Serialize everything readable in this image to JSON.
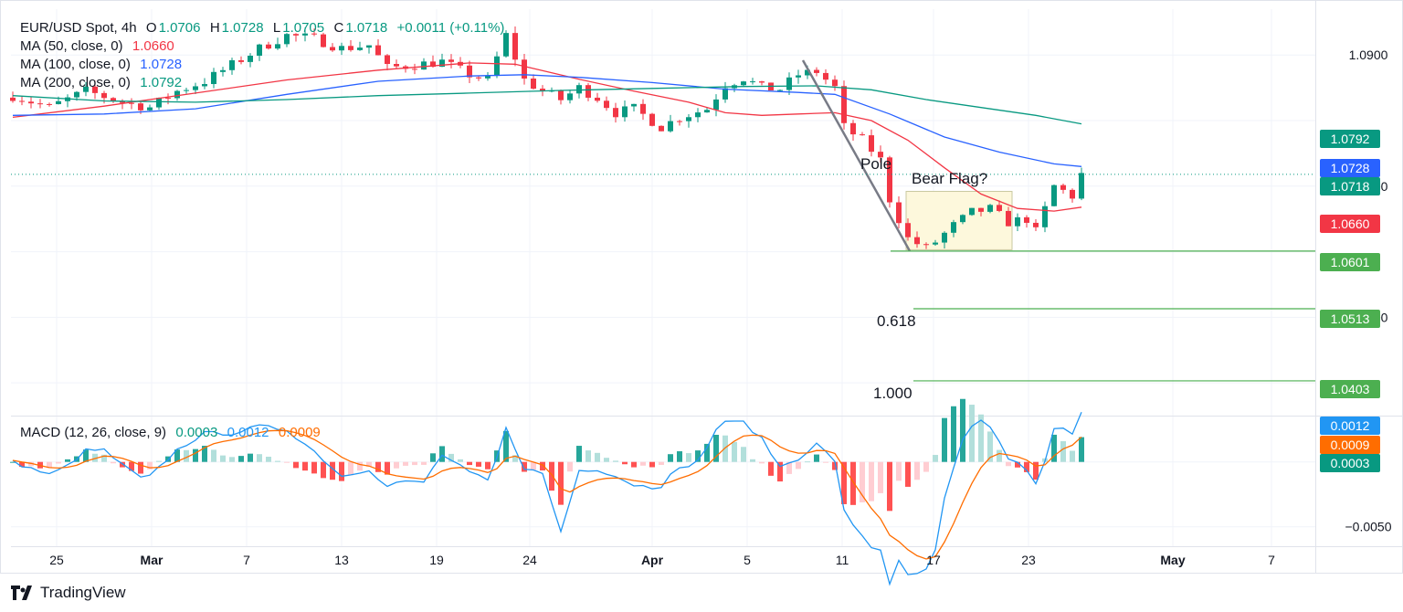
{
  "header": {
    "symbol": "EUR/USD Spot, 4h",
    "o_label": "O",
    "o_value": "1.0706",
    "h_label": "H",
    "h_value": "1.0728",
    "l_label": "L",
    "l_value": "1.0705",
    "c_label": "C",
    "c_value": "1.0718",
    "change": "+0.0011 (+0.11%)"
  },
  "indicators": [
    {
      "label": "MA (50, close, 0)",
      "value": "1.0660",
      "color": "#f23645"
    },
    {
      "label": "MA (100, close, 0)",
      "value": "1.0728",
      "color": "#2962ff"
    },
    {
      "label": "MA (200, close, 0)",
      "value": "1.0792",
      "color": "#089981"
    }
  ],
  "macd_legend": {
    "label": "MACD (12, 26, close, 9)",
    "hist": "0.0003",
    "macd": "0.0012",
    "signal": "0.0009",
    "hist_color": "#089981",
    "macd_color": "#2196f3",
    "signal_color": "#ff6d00"
  },
  "branding": "TradingView",
  "chart_data": {
    "type": "candlestick",
    "x_axis": {
      "tick_labels": [
        "25",
        "Mar",
        "7",
        "13",
        "19",
        "24",
        "Apr",
        "5",
        "11",
        "17",
        "23",
        "May",
        "7"
      ]
    },
    "price_axis": {
      "tick_labels": [
        "1.0900",
        "1.0700",
        "1.0500"
      ],
      "range": [
        1.035,
        1.097
      ]
    },
    "macd_axis": {
      "tick_labels": [
        "−0.0050"
      ],
      "range": [
        -0.0065,
        0.0035
      ]
    },
    "price_badges": [
      {
        "value": "1.0792",
        "color": "#089981"
      },
      {
        "value": "1.0728",
        "color": "#2962ff"
      },
      {
        "value": "1.0718",
        "color": "#089981"
      },
      {
        "value": "1.0660",
        "color": "#f23645"
      },
      {
        "value": "1.0601",
        "color": "#4caf50"
      },
      {
        "value": "1.0513",
        "color": "#4caf50"
      },
      {
        "value": "1.0403",
        "color": "#4caf50"
      }
    ],
    "macd_badges": [
      {
        "value": "0.0012",
        "color": "#2196f3"
      },
      {
        "value": "0.0009",
        "color": "#ff6d00"
      },
      {
        "value": "0.0003",
        "color": "#089981"
      }
    ],
    "moving_averages": [
      {
        "name": "MA 50",
        "color": "#f23645",
        "points": [
          [
            0,
            1.0805
          ],
          [
            10,
            1.0822
          ],
          [
            20,
            1.0842
          ],
          [
            30,
            1.0862
          ],
          [
            40,
            1.0877
          ],
          [
            50,
            1.0888
          ],
          [
            55,
            1.0886
          ],
          [
            62,
            1.0863
          ],
          [
            68,
            1.0845
          ],
          [
            74,
            1.0828
          ],
          [
            78,
            1.0812
          ],
          [
            82,
            1.0808
          ],
          [
            86,
            1.081
          ],
          [
            90,
            1.0812
          ],
          [
            94,
            1.08
          ],
          [
            98,
            1.077
          ],
          [
            102,
            1.0728
          ],
          [
            106,
            1.0688
          ],
          [
            110,
            1.0666
          ],
          [
            114,
            1.0662
          ],
          [
            117,
            1.0668
          ]
        ]
      },
      {
        "name": "MA 100",
        "color": "#2962ff",
        "points": [
          [
            0,
            1.0808
          ],
          [
            10,
            1.081
          ],
          [
            20,
            1.0818
          ],
          [
            30,
            1.084
          ],
          [
            40,
            1.086
          ],
          [
            50,
            1.0868
          ],
          [
            56,
            1.087
          ],
          [
            62,
            1.0866
          ],
          [
            70,
            1.0858
          ],
          [
            78,
            1.0848
          ],
          [
            86,
            1.0843
          ],
          [
            90,
            1.084
          ],
          [
            96,
            1.081
          ],
          [
            102,
            1.0775
          ],
          [
            108,
            1.0752
          ],
          [
            114,
            1.0734
          ],
          [
            117,
            1.073
          ]
        ]
      },
      {
        "name": "MA 200",
        "color": "#089981",
        "points": [
          [
            0,
            1.0838
          ],
          [
            10,
            1.083
          ],
          [
            20,
            1.0828
          ],
          [
            30,
            1.0832
          ],
          [
            40,
            1.0838
          ],
          [
            50,
            1.0842
          ],
          [
            60,
            1.0846
          ],
          [
            70,
            1.0849
          ],
          [
            80,
            1.0852
          ],
          [
            88,
            1.0853
          ],
          [
            94,
            1.0847
          ],
          [
            100,
            1.0832
          ],
          [
            106,
            1.082
          ],
          [
            112,
            1.0808
          ],
          [
            117,
            1.0795
          ]
        ]
      }
    ],
    "close_path": [
      [
        0,
        1.0838
      ],
      [
        4,
        1.082
      ],
      [
        8,
        1.0845
      ],
      [
        12,
        1.0828
      ],
      [
        15,
        1.082
      ],
      [
        18,
        1.0845
      ],
      [
        21,
        1.086
      ],
      [
        24,
        1.0885
      ],
      [
        27,
        1.091
      ],
      [
        30,
        1.093
      ],
      [
        33,
        1.0925
      ],
      [
        36,
        1.091
      ],
      [
        39,
        1.0915
      ],
      [
        41,
        1.088
      ],
      [
        44,
        1.0885
      ],
      [
        47,
        1.089
      ],
      [
        50,
        1.087
      ],
      [
        52,
        1.0862
      ],
      [
        54,
        1.093
      ],
      [
        56,
        1.0862
      ],
      [
        58,
        1.0845
      ],
      [
        60,
        1.0832
      ],
      [
        62,
        1.085
      ],
      [
        64,
        1.0835
      ],
      [
        66,
        1.0812
      ],
      [
        68,
        1.0818
      ],
      [
        71,
        1.079
      ],
      [
        73,
        1.0805
      ],
      [
        76,
        1.0818
      ],
      [
        78,
        1.0855
      ],
      [
        80,
        1.0865
      ],
      [
        82,
        1.085
      ],
      [
        84,
        1.0848
      ],
      [
        86,
        1.087
      ],
      [
        88,
        1.0875
      ],
      [
        90,
        1.085
      ],
      [
        91,
        1.079
      ],
      [
        93,
        1.077
      ],
      [
        95,
        1.074
      ],
      [
        96,
        1.068
      ],
      [
        98,
        1.062
      ],
      [
        100,
        1.0605
      ],
      [
        101,
        1.0615
      ],
      [
        103,
        1.064
      ],
      [
        105,
        1.066
      ],
      [
        107,
        1.0665
      ],
      [
        109,
        1.0645
      ],
      [
        111,
        1.065
      ],
      [
        112,
        1.063
      ],
      [
        114,
        1.07
      ],
      [
        116,
        1.0685
      ],
      [
        117,
        1.0718
      ]
    ],
    "annotations": [
      {
        "text": "Pole"
      },
      {
        "text": "Bear Flag?"
      },
      {
        "text": "0.618"
      },
      {
        "text": "1.000"
      }
    ],
    "horizontal_levels": [
      1.0601,
      1.0513,
      1.0403
    ],
    "current_price": 1.0718
  }
}
